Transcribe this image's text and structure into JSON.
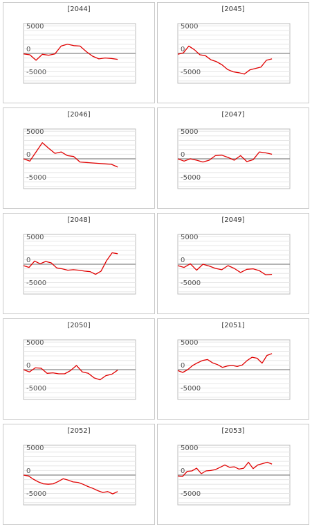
{
  "chart_data": [
    {
      "type": "line",
      "title": "[2044]",
      "yticks": [
        5000,
        0,
        -5000
      ],
      "ylim": [
        -6500,
        6500
      ],
      "color": "#e00000",
      "values": [
        -100,
        -300,
        -1500,
        -200,
        -400,
        -100,
        1600,
        2000,
        1700,
        1600,
        400,
        -600,
        -1200,
        -1000,
        -1100,
        -1300
      ]
    },
    {
      "type": "line",
      "title": "[2045]",
      "yticks": [
        5000,
        0,
        -5000
      ],
      "ylim": [
        -6500,
        6500
      ],
      "color": "#e00000",
      "values": [
        -200,
        100,
        1600,
        800,
        -300,
        -500,
        -1400,
        -1800,
        -2500,
        -3500,
        -4000,
        -4200,
        -4500,
        -3600,
        -3300,
        -3000,
        -1500,
        -1200
      ]
    },
    {
      "type": "line",
      "title": "[2046]",
      "yticks": [
        5000,
        0,
        -5000
      ],
      "ylim": [
        -6500,
        6500
      ],
      "color": "#e00000",
      "values": [
        0,
        -500,
        1500,
        3500,
        2300,
        1200,
        1500,
        700,
        500,
        -700,
        -800,
        -900,
        -1000,
        -1100,
        -1200,
        -1800
      ]
    },
    {
      "type": "line",
      "title": "[2047]",
      "yticks": [
        5000,
        0,
        -5000
      ],
      "ylim": [
        -6500,
        6500
      ],
      "color": "#e00000",
      "values": [
        0,
        -500,
        0,
        -300,
        -700,
        -300,
        700,
        800,
        300,
        -300,
        700,
        -600,
        -200,
        1500,
        1300,
        1000
      ]
    },
    {
      "type": "line",
      "title": "[2048]",
      "yticks": [
        5000,
        0,
        -5000
      ],
      "ylim": [
        -6500,
        6500
      ],
      "color": "#e00000",
      "values": [
        -300,
        -700,
        700,
        100,
        600,
        300,
        -800,
        -1000,
        -1300,
        -1200,
        -1300,
        -1500,
        -1600,
        -2200,
        -1500,
        800,
        2500,
        2300
      ]
    },
    {
      "type": "line",
      "title": "[2049]",
      "yticks": [
        5000,
        0,
        -5000
      ],
      "ylim": [
        -6500,
        6500
      ],
      "color": "#e00000",
      "values": [
        -300,
        -700,
        100,
        -1300,
        0,
        -400,
        -900,
        -1200,
        -300,
        -900,
        -1800,
        -1100,
        -1000,
        -1400,
        -2300,
        -2200
      ]
    },
    {
      "type": "line",
      "title": "[2050]",
      "yticks": [
        5000,
        0,
        -5000
      ],
      "ylim": [
        -6500,
        6500
      ],
      "color": "#e00000",
      "values": [
        0,
        -500,
        400,
        300,
        -800,
        -700,
        -900,
        -900,
        -200,
        900,
        -500,
        -800,
        -1800,
        -2200,
        -1300,
        -1000,
        -100
      ]
    },
    {
      "type": "line",
      "title": "[2051]",
      "yticks": [
        5000,
        0,
        -5000
      ],
      "ylim": [
        -6500,
        6500
      ],
      "color": "#e00000",
      "values": [
        -200,
        -600,
        0,
        900,
        1500,
        2000,
        2200,
        1500,
        1100,
        500,
        800,
        900,
        700,
        1000,
        2000,
        2700,
        2500,
        1400,
        3100,
        3500
      ]
    },
    {
      "type": "line",
      "title": "[2052]",
      "yticks": [
        5000,
        0,
        -5000
      ],
      "ylim": [
        -6500,
        6500
      ],
      "color": "#e00000",
      "values": [
        0,
        -200,
        -900,
        -1500,
        -1900,
        -2000,
        -1900,
        -1400,
        -800,
        -1100,
        -1500,
        -1600,
        -2000,
        -2500,
        -2900,
        -3400,
        -3800,
        -3600,
        -4100,
        -3600
      ]
    },
    {
      "type": "line",
      "title": "[2053]",
      "yticks": [
        5000,
        0,
        -5000
      ],
      "ylim": [
        -6500,
        6500
      ],
      "color": "#e00000",
      "values": [
        -200,
        -300,
        800,
        900,
        1500,
        300,
        900,
        1000,
        1200,
        1700,
        2200,
        1700,
        1800,
        1300,
        1500,
        2800,
        1400,
        2200,
        2500,
        2800,
        2400
      ]
    }
  ]
}
